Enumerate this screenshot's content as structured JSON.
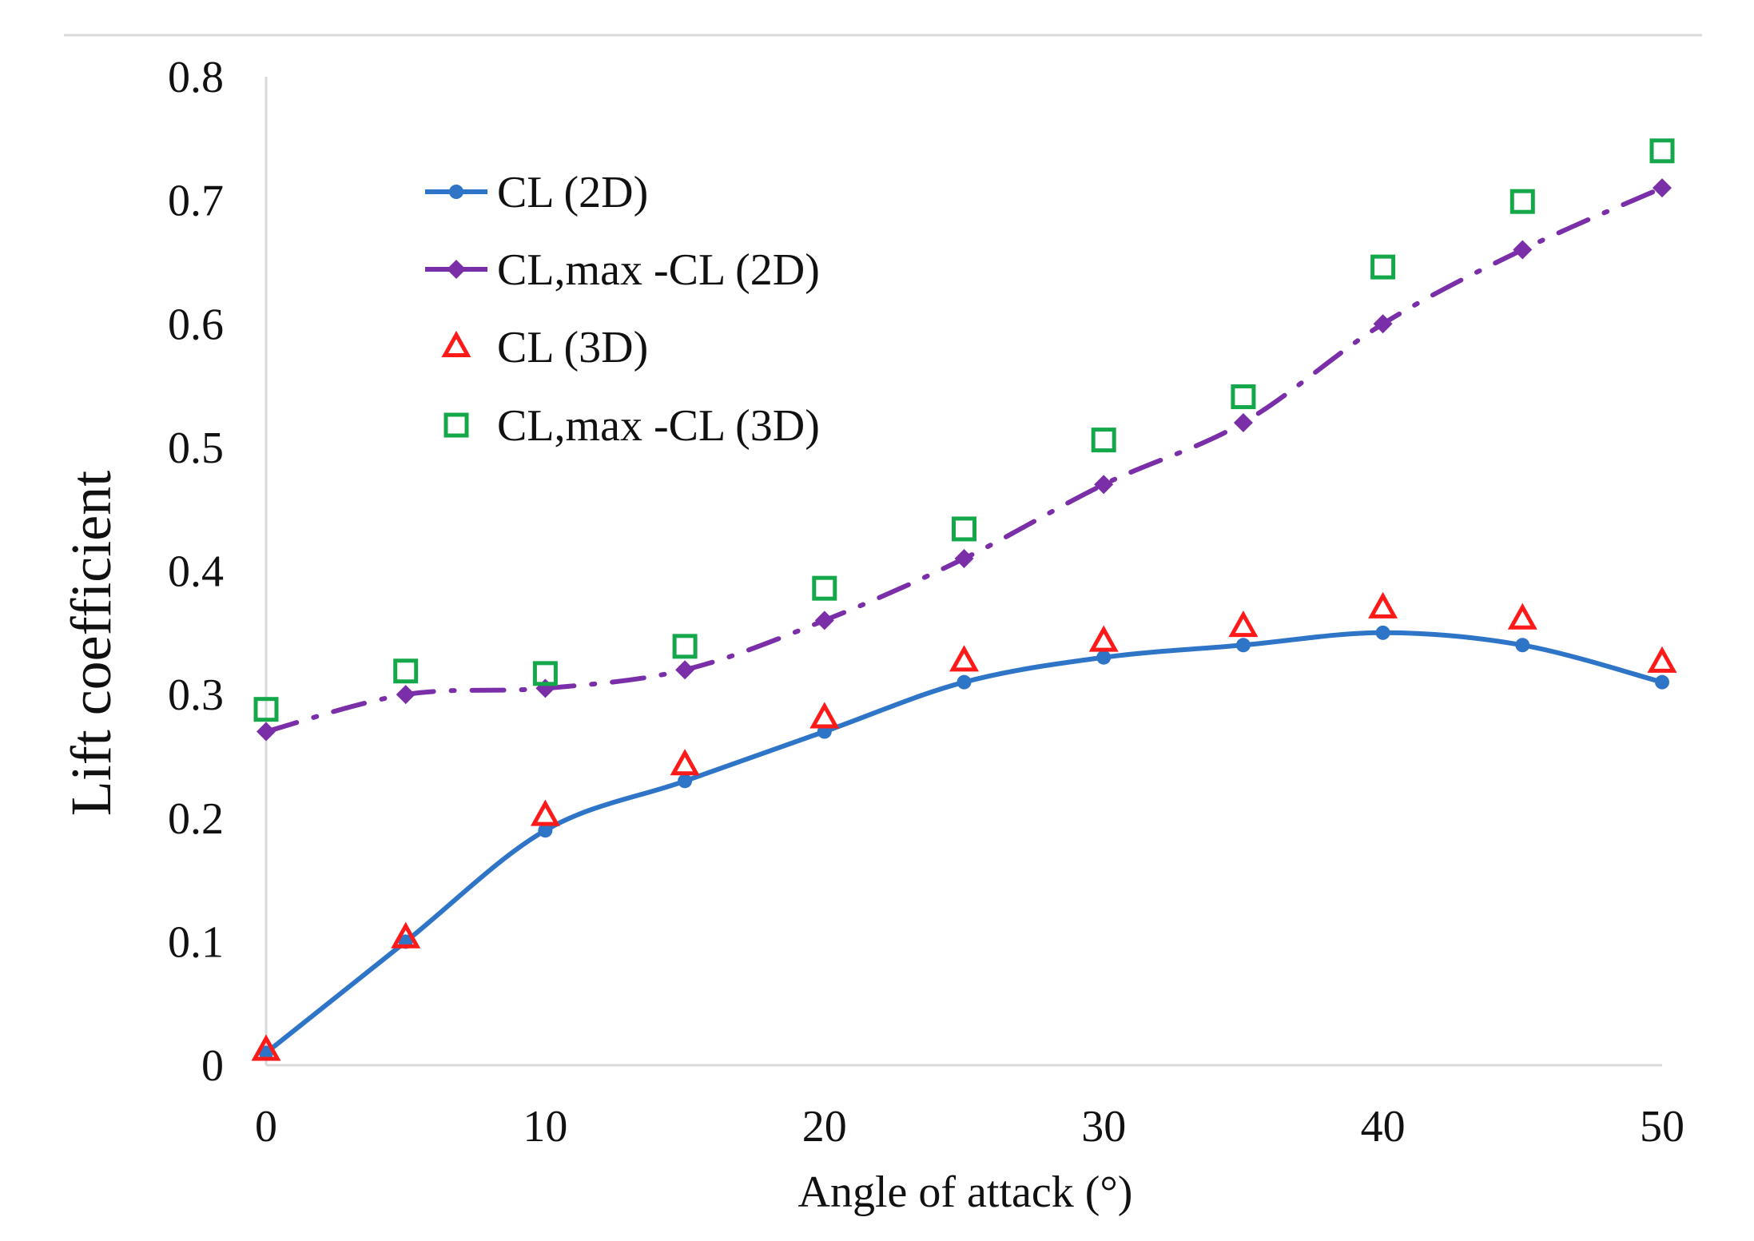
{
  "chart_data": {
    "type": "line",
    "title": "",
    "xlabel": "Angle of attack (°)",
    "ylabel": "Lift coefficient",
    "xlim": [
      0,
      50
    ],
    "ylim": [
      0,
      0.8
    ],
    "x_ticks": [
      "0",
      "10",
      "20",
      "30",
      "40",
      "50"
    ],
    "y_ticks": [
      "0",
      "0.1",
      "0.2",
      "0.3",
      "0.4",
      "0.5",
      "0.6",
      "0.7",
      "0.8"
    ],
    "grid": false,
    "legend_position": "top-left",
    "x": [
      0,
      5,
      10,
      15,
      20,
      25,
      30,
      35,
      40,
      45,
      50
    ],
    "series": [
      {
        "name": "CL (2D)",
        "style": "solid-line-circle",
        "color": "#2e75c8",
        "values": [
          0.01,
          0.1,
          0.19,
          0.23,
          0.27,
          0.31,
          0.33,
          0.34,
          0.35,
          0.34,
          0.31
        ]
      },
      {
        "name": "CL,max -CL (2D)",
        "style": "dashdot-line-diamond",
        "color": "#7a2fa8",
        "values": [
          0.27,
          0.3,
          0.305,
          0.32,
          0.36,
          0.41,
          0.47,
          0.52,
          0.6,
          0.66,
          0.71
        ]
      },
      {
        "name": "CL (3D)",
        "style": "marker-triangle",
        "color": "#ff1a1a",
        "values": [
          0.012,
          0.103,
          0.202,
          0.243,
          0.281,
          0.327,
          0.343,
          0.355,
          0.37,
          0.361,
          0.326
        ]
      },
      {
        "name": "CL,max -CL (3D)",
        "style": "marker-square",
        "color": "#14a84a",
        "values": [
          0.288,
          0.319,
          0.317,
          0.339,
          0.386,
          0.434,
          0.506,
          0.541,
          0.646,
          0.699,
          0.74
        ]
      }
    ]
  }
}
